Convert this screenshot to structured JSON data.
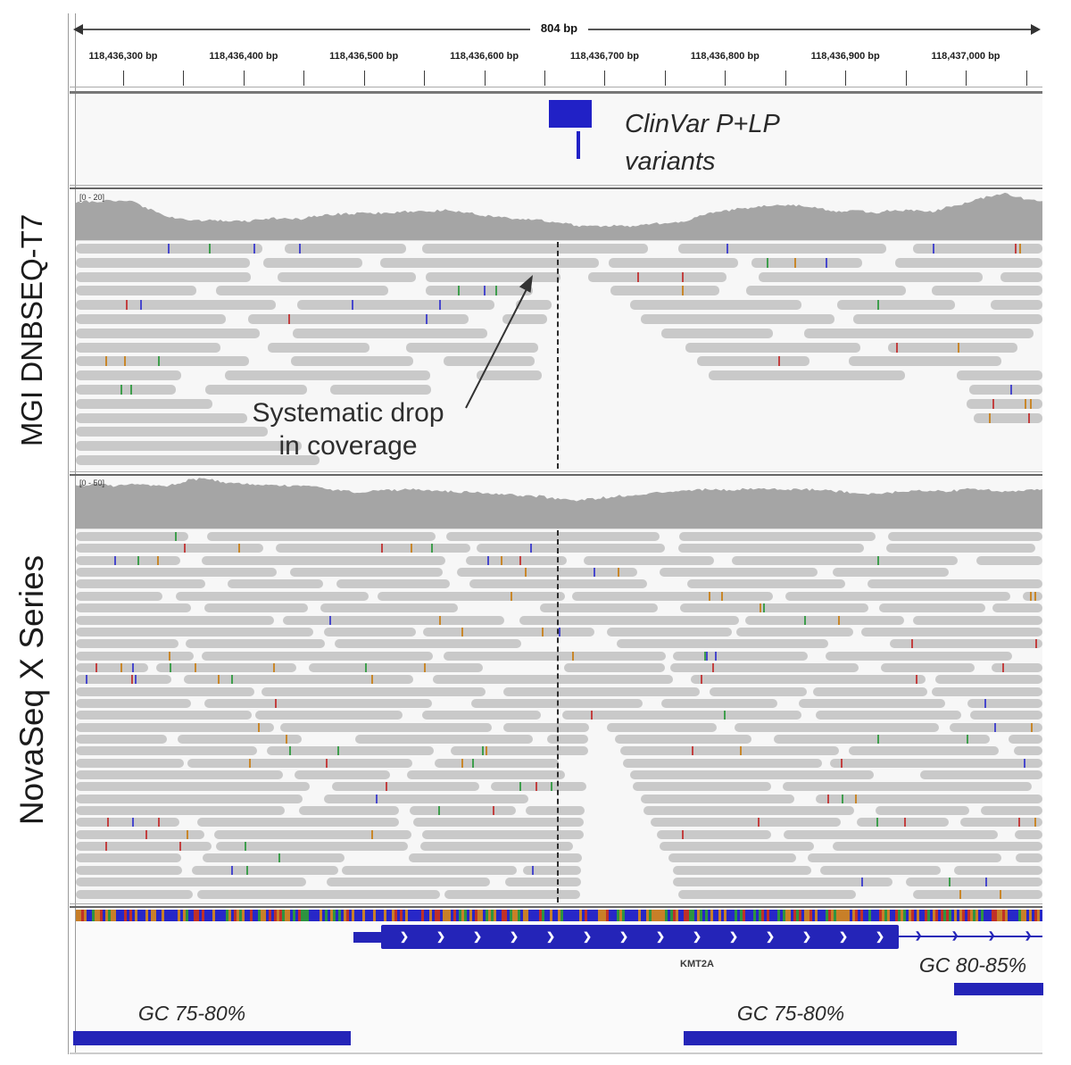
{
  "app": "IGV genome browser comparison figure",
  "ruler": {
    "span_label": "804 bp",
    "tick_labels": [
      "118,436,300 bp",
      "118,436,400 bp",
      "118,436,500 bp",
      "118,436,600 bp",
      "118,436,700 bp",
      "118,436,800 bp",
      "118,436,900 bp",
      "118,437,000 bp"
    ]
  },
  "clinvar_track": {
    "annotation_line1": "ClinVar P+LP",
    "annotation_line2": "variants"
  },
  "sequencing_tracks": [
    {
      "name": "MGI DNBSEQ-T7",
      "coverage_range_label": "[0 - 20]",
      "read_rows": 16,
      "coverage_profile": [
        0.78,
        0.79,
        0.8,
        0.78,
        0.62,
        0.48,
        0.42,
        0.4,
        0.39,
        0.38,
        0.42,
        0.45,
        0.43,
        0.5,
        0.53,
        0.54,
        0.55,
        0.56,
        0.59,
        0.58,
        0.62,
        0.57,
        0.5,
        0.45,
        0.42,
        0.4,
        0.36,
        0.3,
        0.28,
        0.3,
        0.28,
        0.35,
        0.34,
        0.4,
        0.55,
        0.6,
        0.65,
        0.69,
        0.72,
        0.7,
        0.64,
        0.58,
        0.6,
        0.55,
        0.62,
        0.6,
        0.58,
        0.68,
        0.77,
        0.88,
        0.95,
        0.84,
        0.8
      ]
    },
    {
      "name": "NovaSeq X Series",
      "coverage_range_label": "[0 - 50]",
      "read_rows": 31,
      "coverage_profile": [
        0.83,
        0.86,
        0.82,
        0.85,
        0.84,
        0.82,
        0.93,
        0.97,
        0.89,
        0.86,
        0.84,
        0.84,
        0.82,
        0.8,
        0.74,
        0.7,
        0.72,
        0.74,
        0.76,
        0.74,
        0.72,
        0.7,
        0.68,
        0.66,
        0.64,
        0.62,
        0.56,
        0.54,
        0.58,
        0.62,
        0.64,
        0.68,
        0.72,
        0.74,
        0.76,
        0.74,
        0.76,
        0.78,
        0.74,
        0.76,
        0.74,
        0.72,
        0.68,
        0.66,
        0.7,
        0.72,
        0.74,
        0.72,
        0.76,
        0.74,
        0.72,
        0.73,
        0.74
      ]
    }
  ],
  "annotation": {
    "line1": "Systematic drop",
    "line2": "in coverage"
  },
  "gene_track": {
    "gene_name": "KMT2A"
  },
  "gc_annotations": [
    {
      "label": "GC 80-85%"
    },
    {
      "label": "GC 75-80%"
    },
    {
      "label": "GC 75-80%"
    }
  ],
  "colors": {
    "feature_blue": "#2424b8",
    "clinvar_blue": "#2121c6",
    "read_gray": "#c9c9c9",
    "coverage_gray": "#a5a5a5",
    "snp_colors": [
      "#c24040",
      "#4848cc",
      "#3f9e4d",
      "#c8872b"
    ],
    "base_stripe_colors": [
      "#2727c8",
      "#c87f28",
      "#c03028",
      "#2d9440"
    ],
    "base_stripe_weights": [
      0.45,
      0.25,
      0.17,
      0.13
    ]
  },
  "render_seed": 77001
}
